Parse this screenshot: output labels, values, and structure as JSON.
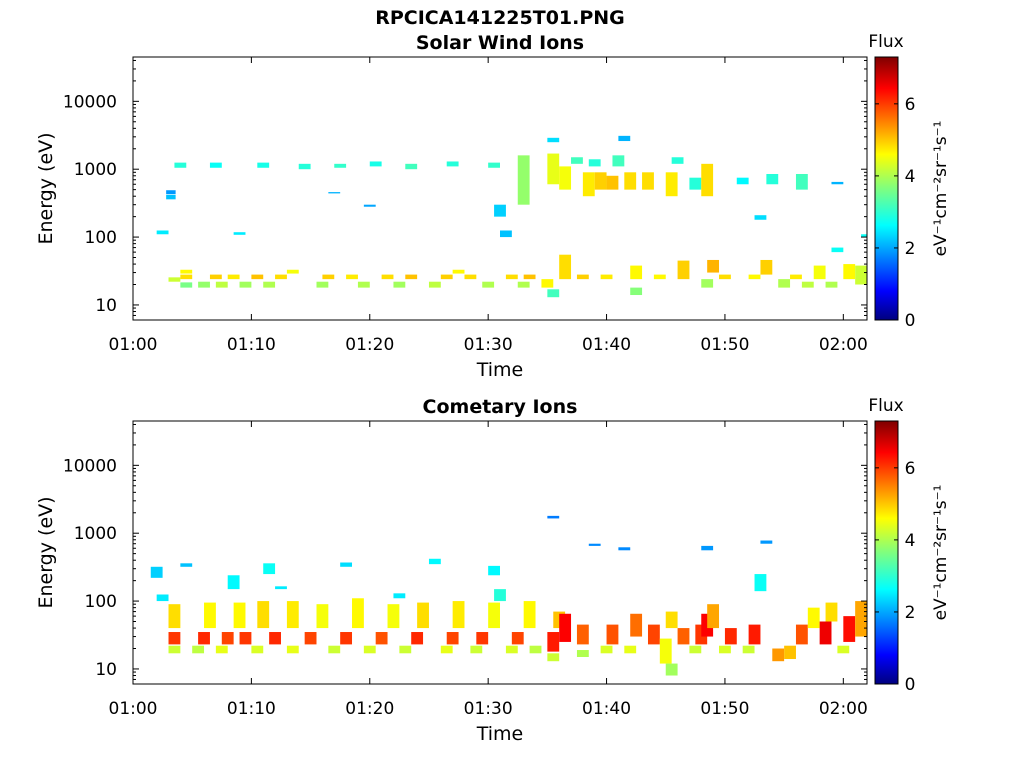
{
  "figure": {
    "filename_title": "RPCICA141225T01.PNG"
  },
  "chart_data": [
    {
      "type": "heatmap",
      "title": "Solar Wind Ions",
      "xlabel": "Time",
      "ylabel": "Energy (eV)",
      "x_range_minutes": [
        60,
        122
      ],
      "x_ticks": [
        "01:00",
        "01:10",
        "01:20",
        "01:30",
        "01:40",
        "01:50",
        "02:00"
      ],
      "y_scale": "log",
      "y_range": [
        6,
        45000
      ],
      "y_ticks": [
        "10",
        "100",
        "1000",
        "10000"
      ],
      "colorbar": {
        "label": "Flux",
        "units": "eV⁻¹cm⁻²sr⁻¹s⁻¹",
        "range": [
          0,
          7.3
        ],
        "ticks": [
          "0",
          "2",
          "4",
          "6"
        ],
        "colormap": "jet"
      },
      "cells": [
        [
          62.0,
          63.0,
          110,
          125,
          2.6
        ],
        [
          62.8,
          63.6,
          360,
          420,
          2.3
        ],
        [
          62.8,
          63.6,
          430,
          490,
          2.0
        ],
        [
          63.5,
          64.5,
          1050,
          1250,
          3.0
        ],
        [
          64.0,
          65.0,
          18,
          21.5,
          3.6
        ],
        [
          63.0,
          64.0,
          22,
          25.5,
          4.2
        ],
        [
          64.0,
          65.0,
          24,
          28,
          4.8
        ],
        [
          64.0,
          65.0,
          29,
          33,
          4.6
        ],
        [
          65.5,
          66.5,
          18,
          22,
          3.8
        ],
        [
          66.5,
          67.5,
          24,
          28,
          4.9
        ],
        [
          67.0,
          68.0,
          18,
          22,
          4.1
        ],
        [
          66.5,
          67.5,
          1050,
          1250,
          2.8
        ],
        [
          68.0,
          69.0,
          24,
          28,
          4.7
        ],
        [
          68.5,
          69.5,
          108,
          118,
          2.6
        ],
        [
          69.0,
          70.0,
          18,
          22,
          3.9
        ],
        [
          70.0,
          71.0,
          24,
          28,
          5.0
        ],
        [
          70.5,
          71.5,
          1050,
          1250,
          2.9
        ],
        [
          71.0,
          72.0,
          18,
          22,
          4.0
        ],
        [
          72.0,
          73.0,
          24,
          28,
          4.8
        ],
        [
          73.0,
          74.0,
          29,
          33,
          4.5
        ],
        [
          74.0,
          75.0,
          1000,
          1200,
          3.0
        ],
        [
          75.5,
          76.5,
          18,
          22,
          3.9
        ],
        [
          76.0,
          77.0,
          24,
          28,
          4.9
        ],
        [
          76.5,
          77.5,
          440,
          460,
          2.2
        ],
        [
          77.0,
          78.0,
          1050,
          1200,
          3.1
        ],
        [
          78.0,
          79.0,
          24,
          28,
          4.7
        ],
        [
          79.0,
          80.0,
          18,
          22,
          4.0
        ],
        [
          79.5,
          80.5,
          280,
          300,
          2.1
        ],
        [
          80.0,
          81.0,
          1100,
          1300,
          2.9
        ],
        [
          81.0,
          82.0,
          24,
          28,
          4.8
        ],
        [
          82.0,
          83.0,
          18,
          22,
          3.9
        ],
        [
          83.0,
          84.0,
          24,
          28,
          5.0
        ],
        [
          83.0,
          84.0,
          1000,
          1200,
          3.2
        ],
        [
          85.0,
          86.0,
          18,
          22,
          4.1
        ],
        [
          86.0,
          87.0,
          24,
          28,
          4.9
        ],
        [
          86.5,
          87.5,
          1100,
          1300,
          3.0
        ],
        [
          87.0,
          88.0,
          29,
          33,
          4.6
        ],
        [
          88.0,
          89.0,
          24,
          28,
          4.8
        ],
        [
          89.5,
          90.5,
          18,
          22,
          4.0
        ],
        [
          90.0,
          91.0,
          1050,
          1250,
          3.1
        ],
        [
          90.5,
          91.5,
          200,
          300,
          2.4
        ],
        [
          91.0,
          92.0,
          100,
          125,
          2.3
        ],
        [
          91.5,
          92.5,
          24,
          28,
          4.8
        ],
        [
          92.5,
          93.5,
          18,
          22,
          4.0
        ],
        [
          92.5,
          93.5,
          300,
          1600,
          3.8
        ],
        [
          93.0,
          94.0,
          24,
          28,
          5.0
        ],
        [
          94.5,
          95.5,
          18,
          24,
          4.6
        ],
        [
          95.0,
          96.0,
          13,
          17,
          3.2
        ],
        [
          95.0,
          96.0,
          600,
          1700,
          4.4
        ],
        [
          95.0,
          96.0,
          2500,
          2900,
          2.5
        ],
        [
          96.0,
          97.0,
          24,
          55,
          4.8
        ],
        [
          96.0,
          97.0,
          500,
          1100,
          4.5
        ],
        [
          97.0,
          98.0,
          1200,
          1500,
          3.2
        ],
        [
          97.5,
          98.5,
          24,
          28,
          4.9
        ],
        [
          98.0,
          99.0,
          400,
          900,
          4.7
        ],
        [
          98.5,
          99.5,
          1100,
          1400,
          3.0
        ],
        [
          99.0,
          100.0,
          500,
          900,
          4.9
        ],
        [
          99.5,
          100.5,
          24,
          28,
          4.7
        ],
        [
          100.0,
          101.0,
          500,
          800,
          5.0
        ],
        [
          100.5,
          101.5,
          1100,
          1600,
          3.2
        ],
        [
          101.0,
          102.0,
          2600,
          3100,
          2.2
        ],
        [
          101.5,
          102.5,
          500,
          900,
          4.8
        ],
        [
          102.0,
          103.0,
          14,
          18,
          3.7
        ],
        [
          102.0,
          103.0,
          24,
          38,
          4.6
        ],
        [
          103.0,
          104.0,
          500,
          900,
          4.8
        ],
        [
          104.0,
          105.0,
          24,
          28,
          4.6
        ],
        [
          105.0,
          106.0,
          400,
          900,
          4.7
        ],
        [
          105.5,
          106.5,
          1200,
          1500,
          3.0
        ],
        [
          106.0,
          107.0,
          24,
          45,
          4.9
        ],
        [
          107.0,
          108.0,
          500,
          750,
          3.0
        ],
        [
          108.0,
          109.0,
          18,
          24,
          3.9
        ],
        [
          108.0,
          109.0,
          400,
          1200,
          4.8
        ],
        [
          108.5,
          109.5,
          30,
          46,
          5.1
        ],
        [
          109.5,
          110.5,
          24,
          28,
          4.8
        ],
        [
          111.0,
          112.0,
          600,
          750,
          2.7
        ],
        [
          112.0,
          113.0,
          24,
          28,
          4.6
        ],
        [
          112.5,
          113.5,
          180,
          210,
          2.5
        ],
        [
          113.0,
          114.0,
          28,
          46,
          4.9
        ],
        [
          113.5,
          114.5,
          600,
          850,
          3.0
        ],
        [
          114.5,
          115.5,
          18,
          24,
          4.0
        ],
        [
          115.5,
          116.5,
          24,
          28,
          4.7
        ],
        [
          116.0,
          117.0,
          500,
          850,
          3.2
        ],
        [
          116.5,
          117.5,
          18,
          22,
          4.1
        ],
        [
          117.5,
          118.5,
          24,
          38,
          4.5
        ],
        [
          118.5,
          119.5,
          18,
          22,
          4.0
        ],
        [
          119.0,
          120.0,
          60,
          70,
          2.8
        ],
        [
          119.0,
          120.0,
          600,
          650,
          2.2
        ],
        [
          120.0,
          121.0,
          24,
          40,
          4.6
        ],
        [
          121.0,
          122.0,
          20,
          38,
          4.2
        ],
        [
          121.5,
          122.0,
          100,
          110,
          2.8
        ]
      ]
    },
    {
      "type": "heatmap",
      "title": "Cometary Ions",
      "xlabel": "Time",
      "ylabel": "Energy (eV)",
      "x_range_minutes": [
        60,
        122
      ],
      "x_ticks": [
        "01:00",
        "01:10",
        "01:20",
        "01:30",
        "01:40",
        "01:50",
        "02:00"
      ],
      "y_scale": "log",
      "y_range": [
        6,
        45000
      ],
      "y_ticks": [
        "10",
        "100",
        "1000",
        "10000"
      ],
      "colorbar": {
        "label": "Flux",
        "units": "eV⁻¹cm⁻²sr⁻¹s⁻¹",
        "range": [
          0,
          7.3
        ],
        "ticks": [
          "0",
          "2",
          "4",
          "6"
        ],
        "colormap": "jet"
      },
      "cells": [
        [
          61.5,
          62.5,
          220,
          320,
          2.4
        ],
        [
          62.0,
          63.0,
          100,
          125,
          2.6
        ],
        [
          63.0,
          64.0,
          17,
          22,
          4.2
        ],
        [
          63.0,
          64.0,
          23,
          35,
          6.0
        ],
        [
          63.0,
          64.0,
          40,
          90,
          4.8
        ],
        [
          64.0,
          65.0,
          320,
          360,
          2.3
        ],
        [
          65.0,
          66.0,
          17,
          22,
          4.1
        ],
        [
          65.5,
          66.5,
          23,
          35,
          6.1
        ],
        [
          66.0,
          67.0,
          40,
          95,
          4.6
        ],
        [
          67.0,
          68.0,
          17,
          22,
          4.4
        ],
        [
          67.5,
          68.5,
          23,
          35,
          5.9
        ],
        [
          68.0,
          69.0,
          150,
          240,
          2.7
        ],
        [
          68.5,
          69.5,
          40,
          95,
          4.6
        ],
        [
          69.0,
          70.0,
          23,
          35,
          6.0
        ],
        [
          70.0,
          71.0,
          17,
          22,
          4.3
        ],
        [
          70.5,
          71.5,
          40,
          100,
          4.8
        ],
        [
          71.0,
          72.0,
          250,
          360,
          2.8
        ],
        [
          71.5,
          72.5,
          23,
          35,
          6.1
        ],
        [
          72.0,
          73.0,
          150,
          165,
          2.6
        ],
        [
          73.0,
          74.0,
          17,
          22,
          4.4
        ],
        [
          73.0,
          74.0,
          40,
          100,
          4.7
        ],
        [
          74.5,
          75.5,
          23,
          35,
          5.9
        ],
        [
          75.5,
          76.5,
          40,
          90,
          4.5
        ],
        [
          76.5,
          77.5,
          17,
          22,
          4.2
        ],
        [
          77.5,
          78.5,
          320,
          370,
          2.5
        ],
        [
          77.5,
          78.5,
          23,
          35,
          6.0
        ],
        [
          78.5,
          79.5,
          40,
          110,
          4.6
        ],
        [
          79.5,
          80.5,
          17,
          22,
          4.3
        ],
        [
          80.5,
          81.5,
          23,
          35,
          5.8
        ],
        [
          81.5,
          82.5,
          40,
          90,
          4.5
        ],
        [
          82.0,
          83.0,
          110,
          130,
          2.6
        ],
        [
          82.5,
          83.5,
          17,
          22,
          4.2
        ],
        [
          83.5,
          84.5,
          23,
          35,
          6.1
        ],
        [
          84.0,
          85.0,
          40,
          95,
          4.8
        ],
        [
          85.0,
          86.0,
          350,
          420,
          2.7
        ],
        [
          86.0,
          87.0,
          17,
          22,
          4.4
        ],
        [
          86.5,
          87.5,
          23,
          35,
          5.9
        ],
        [
          87.0,
          88.0,
          40,
          100,
          4.7
        ],
        [
          88.5,
          89.5,
          17,
          22,
          4.2
        ],
        [
          89.0,
          90.0,
          23,
          35,
          6.0
        ],
        [
          90.0,
          91.0,
          40,
          95,
          4.5
        ],
        [
          90.0,
          91.0,
          240,
          330,
          2.7
        ],
        [
          90.5,
          91.5,
          100,
          150,
          3.0
        ],
        [
          91.5,
          92.5,
          17,
          22,
          4.3
        ],
        [
          92.0,
          93.0,
          23,
          35,
          5.9
        ],
        [
          93.0,
          94.0,
          40,
          100,
          4.6
        ],
        [
          93.5,
          94.5,
          17,
          22,
          4.1
        ],
        [
          95.0,
          96.0,
          13,
          17,
          4.2
        ],
        [
          95.0,
          96.0,
          18,
          35,
          6.2
        ],
        [
          95.0,
          96.0,
          1650,
          1800,
          1.8
        ],
        [
          95.5,
          96.5,
          40,
          70,
          5.0
        ],
        [
          96.0,
          97.0,
          25,
          65,
          6.4
        ],
        [
          97.5,
          98.5,
          15,
          19,
          4.0
        ],
        [
          97.5,
          98.5,
          23,
          45,
          5.7
        ],
        [
          98.5,
          99.5,
          650,
          700,
          1.9
        ],
        [
          99.5,
          100.5,
          17,
          22,
          4.3
        ],
        [
          100.0,
          101.0,
          23,
          45,
          5.8
        ],
        [
          101.0,
          102.0,
          560,
          620,
          1.9
        ],
        [
          101.5,
          102.5,
          17,
          22,
          4.4
        ],
        [
          102.0,
          103.0,
          30,
          65,
          5.6
        ],
        [
          103.5,
          104.5,
          23,
          45,
          5.9
        ],
        [
          104.5,
          105.5,
          12,
          28,
          4.5
        ],
        [
          105.0,
          106.0,
          8,
          12,
          3.9
        ],
        [
          105.0,
          106.0,
          40,
          70,
          4.8
        ],
        [
          106.0,
          107.0,
          23,
          40,
          5.7
        ],
        [
          107.0,
          108.0,
          17,
          22,
          4.2
        ],
        [
          107.5,
          108.5,
          23,
          45,
          6.0
        ],
        [
          108.0,
          109.0,
          560,
          650,
          2.0
        ],
        [
          108.0,
          109.0,
          30,
          65,
          6.4
        ],
        [
          108.5,
          109.5,
          40,
          90,
          5.2
        ],
        [
          109.5,
          110.5,
          17,
          22,
          4.3
        ],
        [
          110.0,
          111.0,
          23,
          40,
          6.1
        ],
        [
          111.5,
          112.5,
          17,
          22,
          4.2
        ],
        [
          112.0,
          113.0,
          23,
          45,
          6.2
        ],
        [
          112.5,
          113.5,
          140,
          250,
          2.8
        ],
        [
          113.0,
          114.0,
          700,
          780,
          2.0
        ],
        [
          114.0,
          115.0,
          13,
          20,
          5.3
        ],
        [
          115.0,
          116.0,
          14,
          22,
          5.0
        ],
        [
          116.0,
          117.0,
          23,
          45,
          5.8
        ],
        [
          117.0,
          118.0,
          40,
          80,
          4.6
        ],
        [
          118.0,
          119.0,
          23,
          50,
          6.5
        ],
        [
          118.5,
          119.5,
          50,
          95,
          4.8
        ],
        [
          119.5,
          120.5,
          17,
          22,
          4.3
        ],
        [
          120.0,
          121.0,
          25,
          60,
          6.3
        ],
        [
          121.0,
          122.0,
          30,
          100,
          5.2
        ]
      ]
    }
  ]
}
